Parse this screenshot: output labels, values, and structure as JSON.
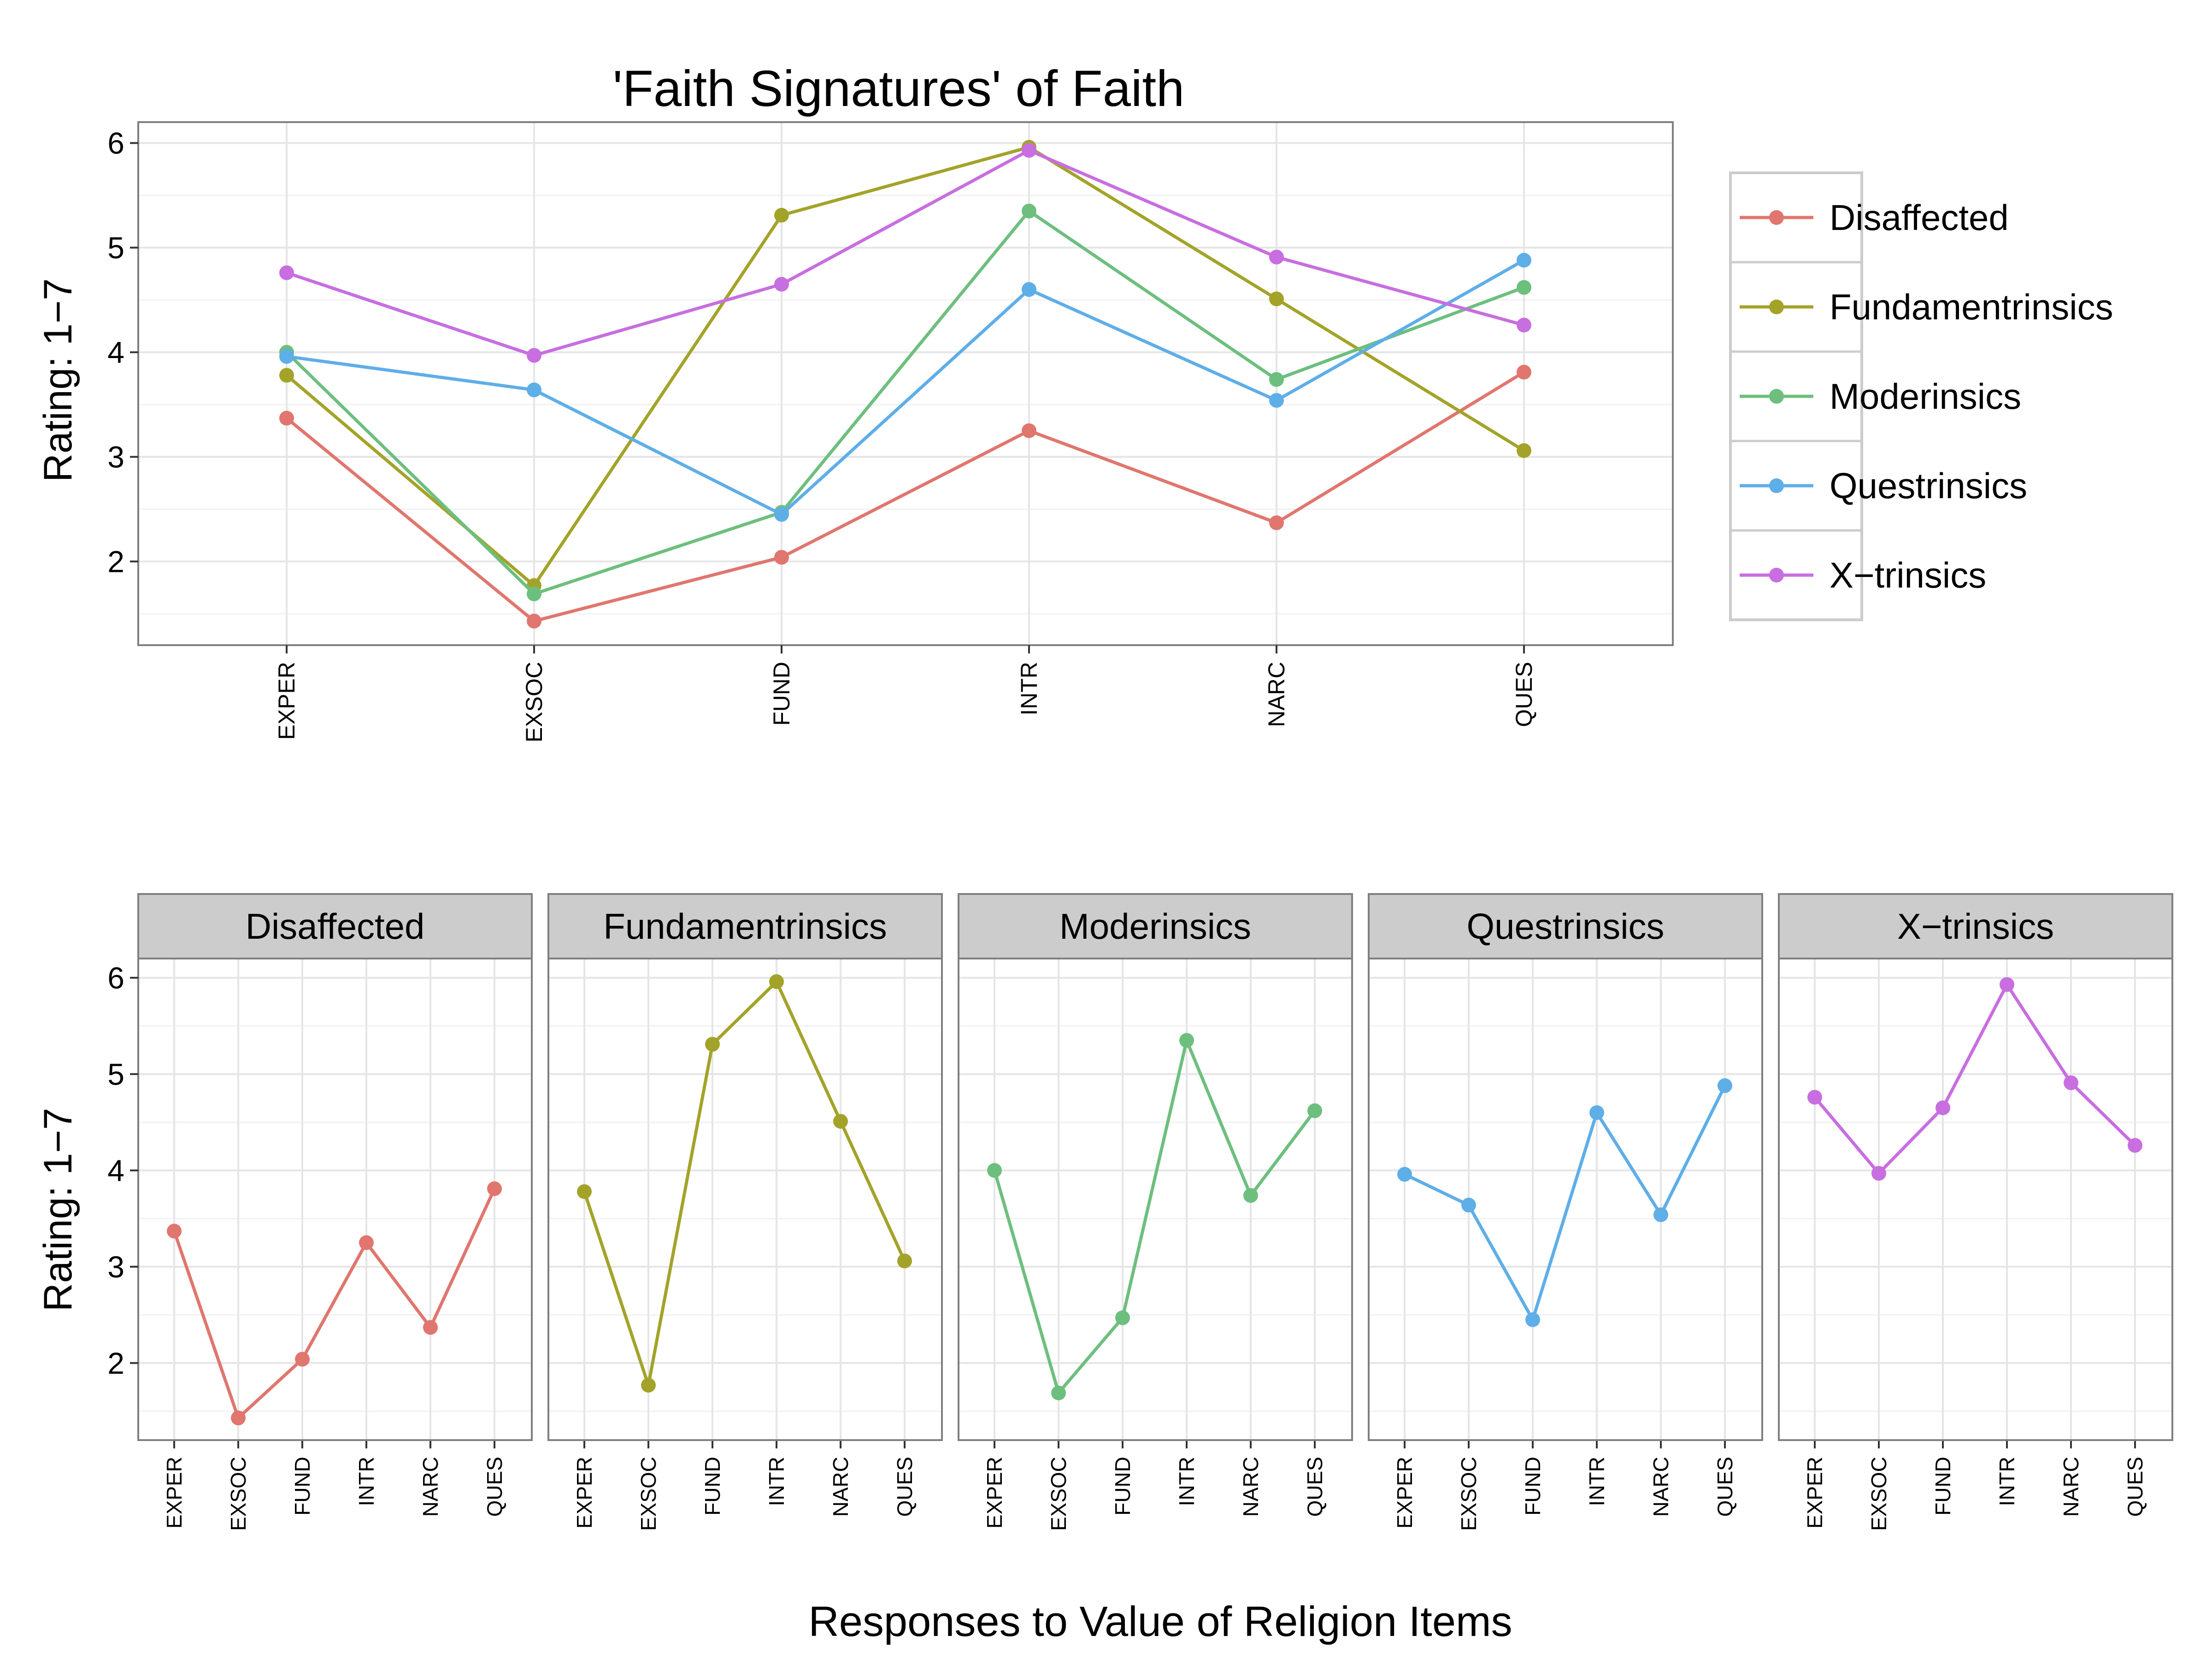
{
  "chart_data": [
    {
      "type": "line",
      "title": "'Faith Signatures' of Faith",
      "xlabel": "",
      "ylabel": "Rating: 1−7",
      "categories": [
        "EXPER",
        "EXSOC",
        "FUND",
        "INTR",
        "NARC",
        "QUES"
      ],
      "ylim": [
        1.2,
        6.2
      ],
      "yticks": [
        2,
        3,
        4,
        5,
        6
      ],
      "grid": true,
      "legend": "right",
      "series": [
        {
          "name": "Disaffected",
          "color": "#e0766e",
          "values": [
            3.37,
            1.43,
            2.04,
            3.25,
            2.37,
            3.81
          ]
        },
        {
          "name": "Fundamentrinsics",
          "color": "#a3a32a",
          "values": [
            3.78,
            1.77,
            5.31,
            5.96,
            4.51,
            3.06
          ]
        },
        {
          "name": "Moderinsics",
          "color": "#6dbf7e",
          "values": [
            4.0,
            1.69,
            2.47,
            5.35,
            3.74,
            4.62
          ]
        },
        {
          "name": "Questrinsics",
          "color": "#5eaee8",
          "values": [
            3.96,
            3.64,
            2.45,
            4.6,
            3.54,
            4.88
          ]
        },
        {
          "name": "X−trinsics",
          "color": "#c86ee0",
          "values": [
            4.76,
            3.97,
            4.65,
            5.93,
            4.91,
            4.26
          ]
        }
      ]
    },
    {
      "type": "line",
      "title": "",
      "facets": true,
      "xlabel": "Responses to Value of Religion Items",
      "ylabel": "Rating: 1−7",
      "categories": [
        "EXPER",
        "EXSOC",
        "FUND",
        "INTR",
        "NARC",
        "QUES"
      ],
      "ylim": [
        1.2,
        6.2
      ],
      "yticks": [
        2,
        3,
        4,
        5,
        6
      ],
      "grid": true,
      "panels": [
        {
          "name": "Disaffected",
          "color": "#e0766e",
          "values": [
            3.37,
            1.43,
            2.04,
            3.25,
            2.37,
            3.81
          ]
        },
        {
          "name": "Fundamentrinsics",
          "color": "#a3a32a",
          "values": [
            3.78,
            1.77,
            5.31,
            5.96,
            4.51,
            3.06
          ]
        },
        {
          "name": "Moderinsics",
          "color": "#6dbf7e",
          "values": [
            4.0,
            1.69,
            2.47,
            5.35,
            3.74,
            4.62
          ]
        },
        {
          "name": "Questrinsics",
          "color": "#5eaee8",
          "values": [
            3.96,
            3.64,
            2.45,
            4.6,
            3.54,
            4.88
          ]
        },
        {
          "name": "X−trinsics",
          "color": "#c86ee0",
          "values": [
            4.76,
            3.97,
            4.65,
            5.93,
            4.91,
            4.26
          ]
        }
      ]
    }
  ]
}
